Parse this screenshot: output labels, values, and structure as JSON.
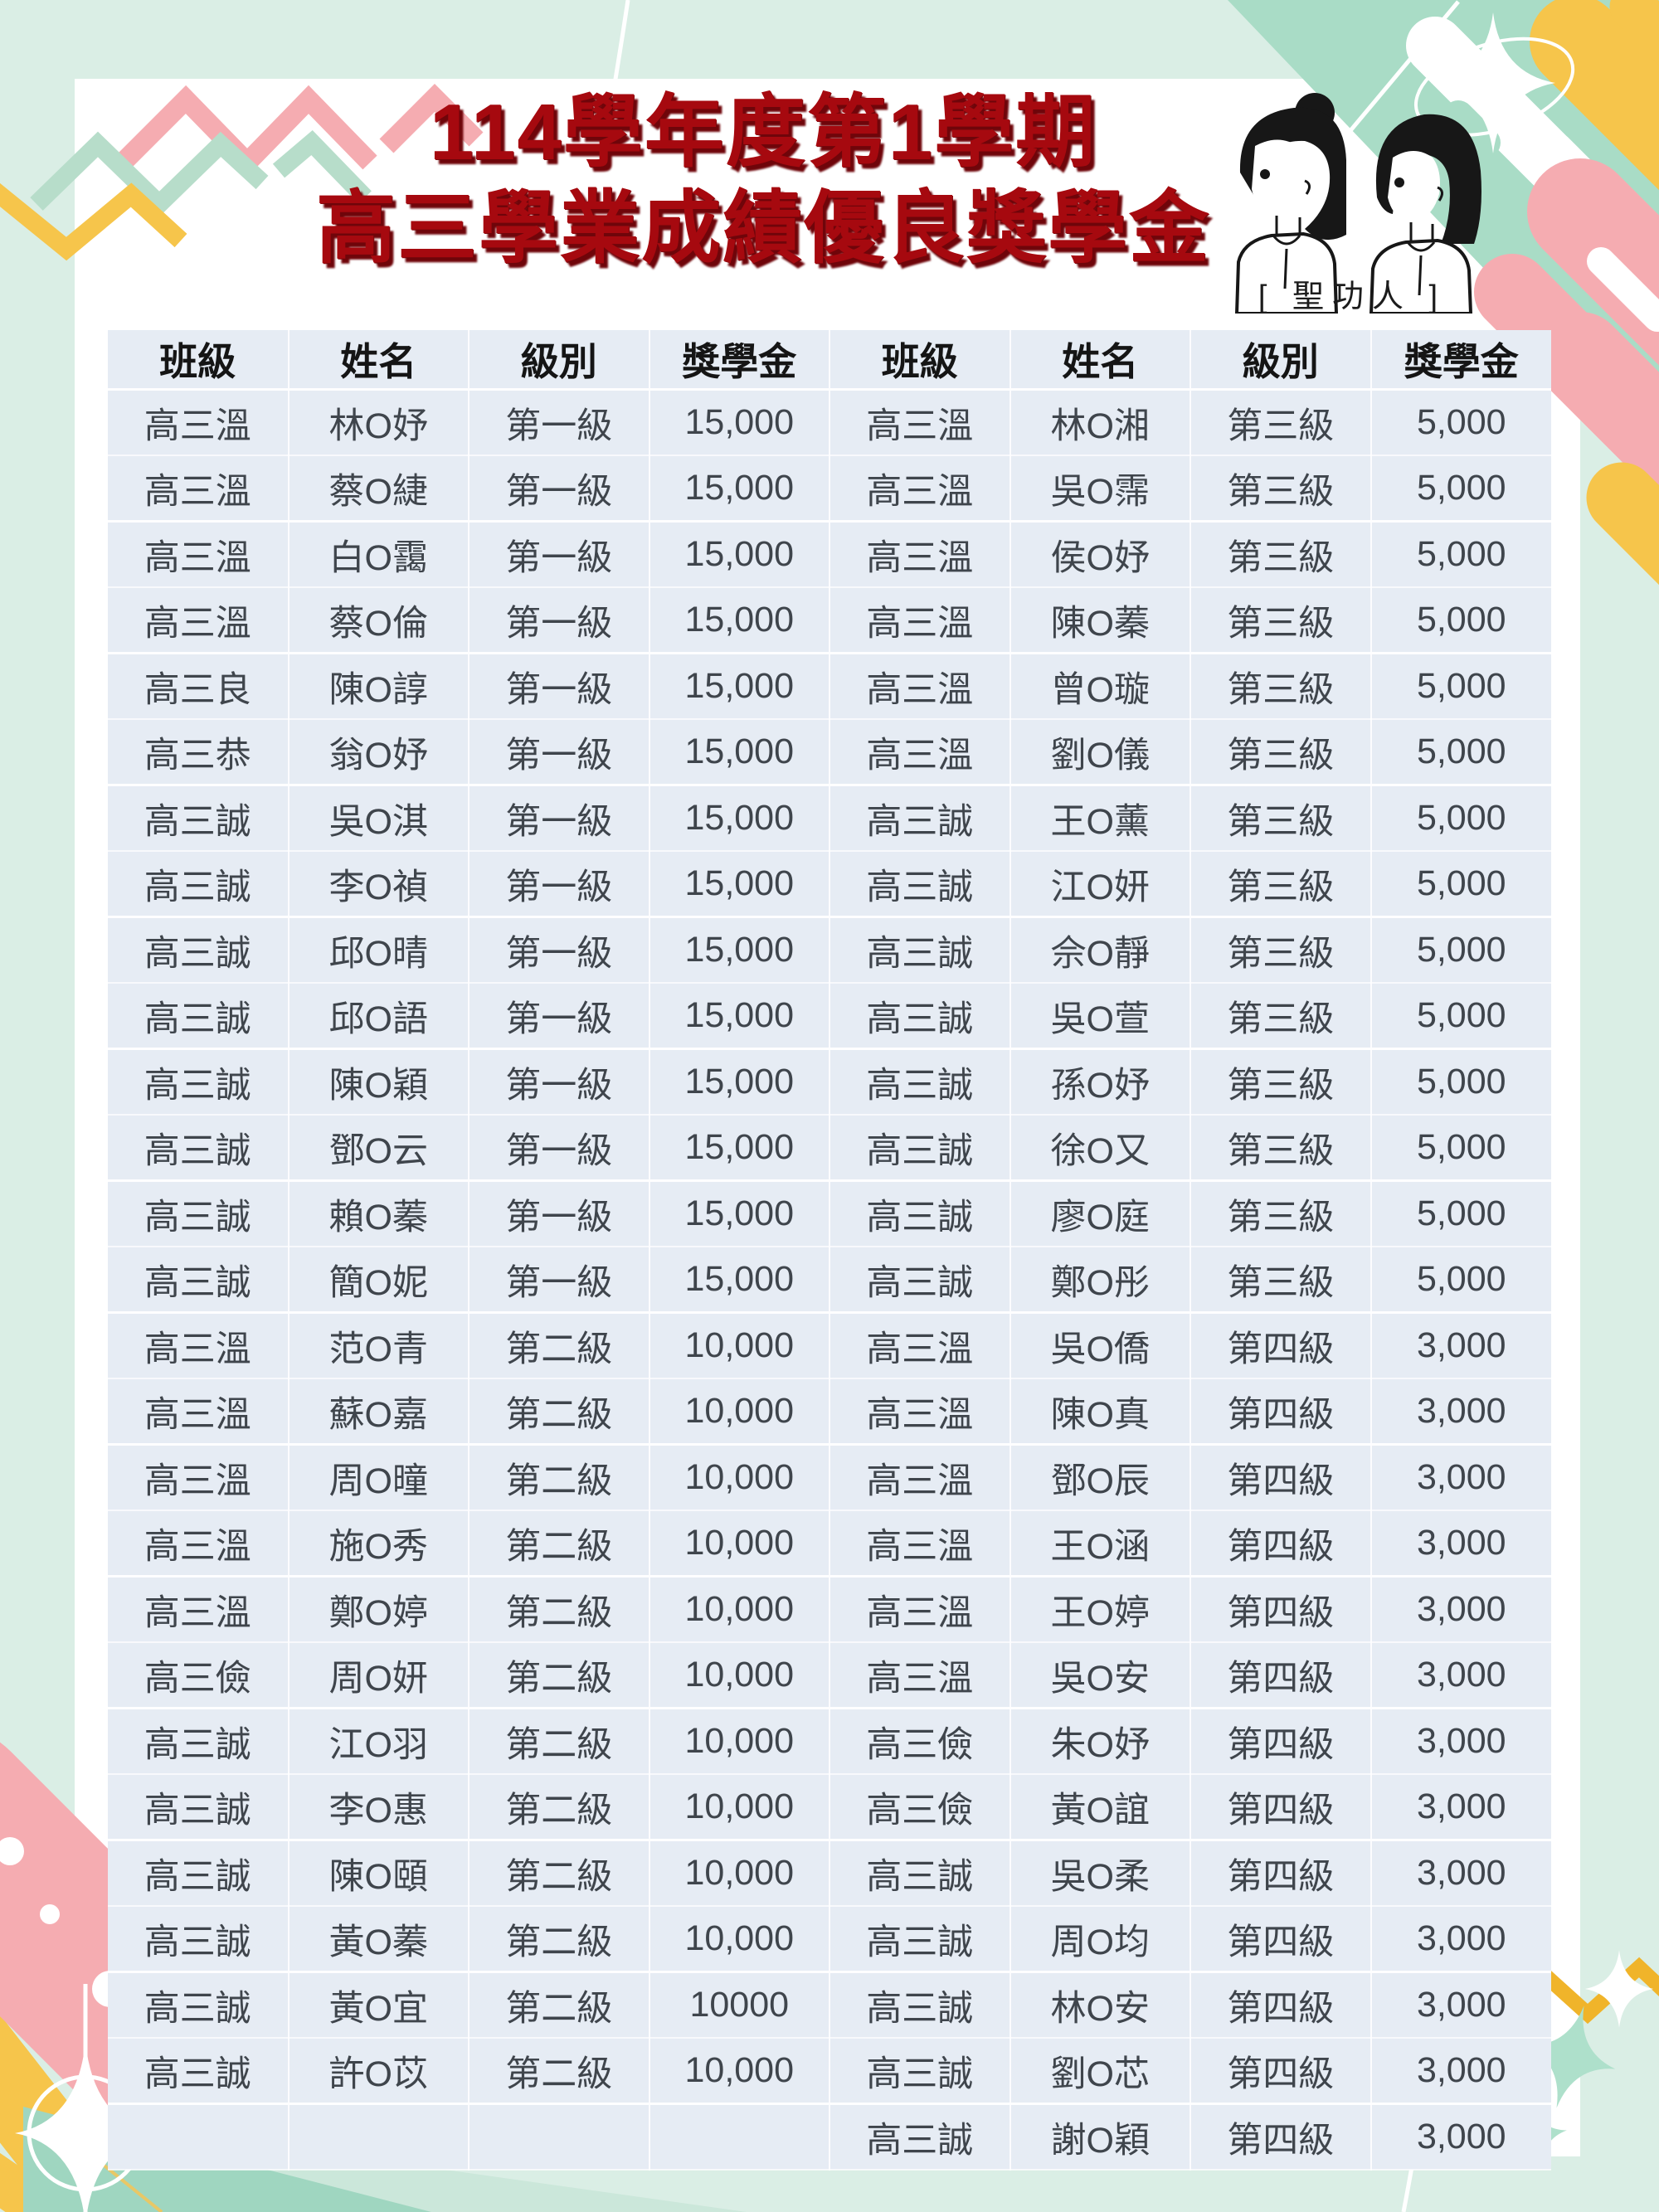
{
  "page": {
    "title_line1": "114學年度第1學期",
    "title_line2": "高三學業成績優良獎學金",
    "mascot_caption": "[ 聖功人 ]"
  },
  "table": {
    "headers": [
      "班級",
      "姓名",
      "級別",
      "獎學金",
      "班級",
      "姓名",
      "級別",
      "獎學金"
    ],
    "rows": [
      [
        "高三溫",
        "林O妤",
        "第一級",
        "15,000",
        "高三溫",
        "林O湘",
        "第三級",
        "5,000"
      ],
      [
        "高三溫",
        "蔡O緁",
        "第一級",
        "15,000",
        "高三溫",
        "吳O霈",
        "第三級",
        "5,000"
      ],
      [
        "高三溫",
        "白O靄",
        "第一級",
        "15,000",
        "高三溫",
        "侯O妤",
        "第三級",
        "5,000"
      ],
      [
        "高三溫",
        "蔡O倫",
        "第一級",
        "15,000",
        "高三溫",
        "陳O蓁",
        "第三級",
        "5,000"
      ],
      [
        "高三良",
        "陳O諄",
        "第一級",
        "15,000",
        "高三溫",
        "曾O璇",
        "第三級",
        "5,000"
      ],
      [
        "高三恭",
        "翁O妤",
        "第一級",
        "15,000",
        "高三溫",
        "劉O儀",
        "第三級",
        "5,000"
      ],
      [
        "高三誠",
        "吳O淇",
        "第一級",
        "15,000",
        "高三誠",
        "王O薰",
        "第三級",
        "5,000"
      ],
      [
        "高三誠",
        "李O禎",
        "第一級",
        "15,000",
        "高三誠",
        "江O妍",
        "第三級",
        "5,000"
      ],
      [
        "高三誠",
        "邱O晴",
        "第一級",
        "15,000",
        "高三誠",
        "佘O靜",
        "第三級",
        "5,000"
      ],
      [
        "高三誠",
        "邱O語",
        "第一級",
        "15,000",
        "高三誠",
        "吳O萱",
        "第三級",
        "5,000"
      ],
      [
        "高三誠",
        "陳O穎",
        "第一級",
        "15,000",
        "高三誠",
        "孫O妤",
        "第三級",
        "5,000"
      ],
      [
        "高三誠",
        "鄧O云",
        "第一級",
        "15,000",
        "高三誠",
        "徐O又",
        "第三級",
        "5,000"
      ],
      [
        "高三誠",
        "賴O蓁",
        "第一級",
        "15,000",
        "高三誠",
        "廖O庭",
        "第三級",
        "5,000"
      ],
      [
        "高三誠",
        "簡O妮",
        "第一級",
        "15,000",
        "高三誠",
        "鄭O彤",
        "第三級",
        "5,000"
      ],
      [
        "高三溫",
        "范O青",
        "第二級",
        "10,000",
        "高三溫",
        "吳O僑",
        "第四級",
        "3,000"
      ],
      [
        "高三溫",
        "蘇O嘉",
        "第二級",
        "10,000",
        "高三溫",
        "陳O真",
        "第四級",
        "3,000"
      ],
      [
        "高三溫",
        "周O曈",
        "第二級",
        "10,000",
        "高三溫",
        "鄧O辰",
        "第四級",
        "3,000"
      ],
      [
        "高三溫",
        "施O秀",
        "第二級",
        "10,000",
        "高三溫",
        "王O涵",
        "第四級",
        "3,000"
      ],
      [
        "高三溫",
        "鄭O婷",
        "第二級",
        "10,000",
        "高三溫",
        "王O婷",
        "第四級",
        "3,000"
      ],
      [
        "高三儉",
        "周O妍",
        "第二級",
        "10,000",
        "高三溫",
        "吳O安",
        "第四級",
        "3,000"
      ],
      [
        "高三誠",
        "江O羽",
        "第二級",
        "10,000",
        "高三儉",
        "朱O妤",
        "第四級",
        "3,000"
      ],
      [
        "高三誠",
        "李O惠",
        "第二級",
        "10,000",
        "高三儉",
        "黃O誼",
        "第四級",
        "3,000"
      ],
      [
        "高三誠",
        "陳O頤",
        "第二級",
        "10,000",
        "高三誠",
        "吳O柔",
        "第四級",
        "3,000"
      ],
      [
        "高三誠",
        "黃O蓁",
        "第二級",
        "10,000",
        "高三誠",
        "周O均",
        "第四級",
        "3,000"
      ],
      [
        "高三誠",
        "黃O宜",
        "第二級",
        "10000",
        "高三誠",
        "林O安",
        "第四級",
        "3,000"
      ],
      [
        "高三誠",
        "許O苡",
        "第二級",
        "10,000",
        "高三誠",
        "劉O芯",
        "第四級",
        "3,000"
      ],
      [
        "",
        "",
        "",
        "",
        "高三誠",
        "謝O穎",
        "第四級",
        "3,000"
      ]
    ]
  },
  "colors": {
    "background_mint": "#daeee5",
    "card_white": "#ffffff",
    "row_blue": "#e6ecf4",
    "title_red": "#a6090f",
    "title_shadow": "#6f050a",
    "text_dark": "#3f454c",
    "deco_pink": "#f5acb1",
    "deco_mint": "#b7ddca",
    "deco_mint_deep": "#a9dcc6",
    "deco_yellow": "#f6c54b"
  }
}
